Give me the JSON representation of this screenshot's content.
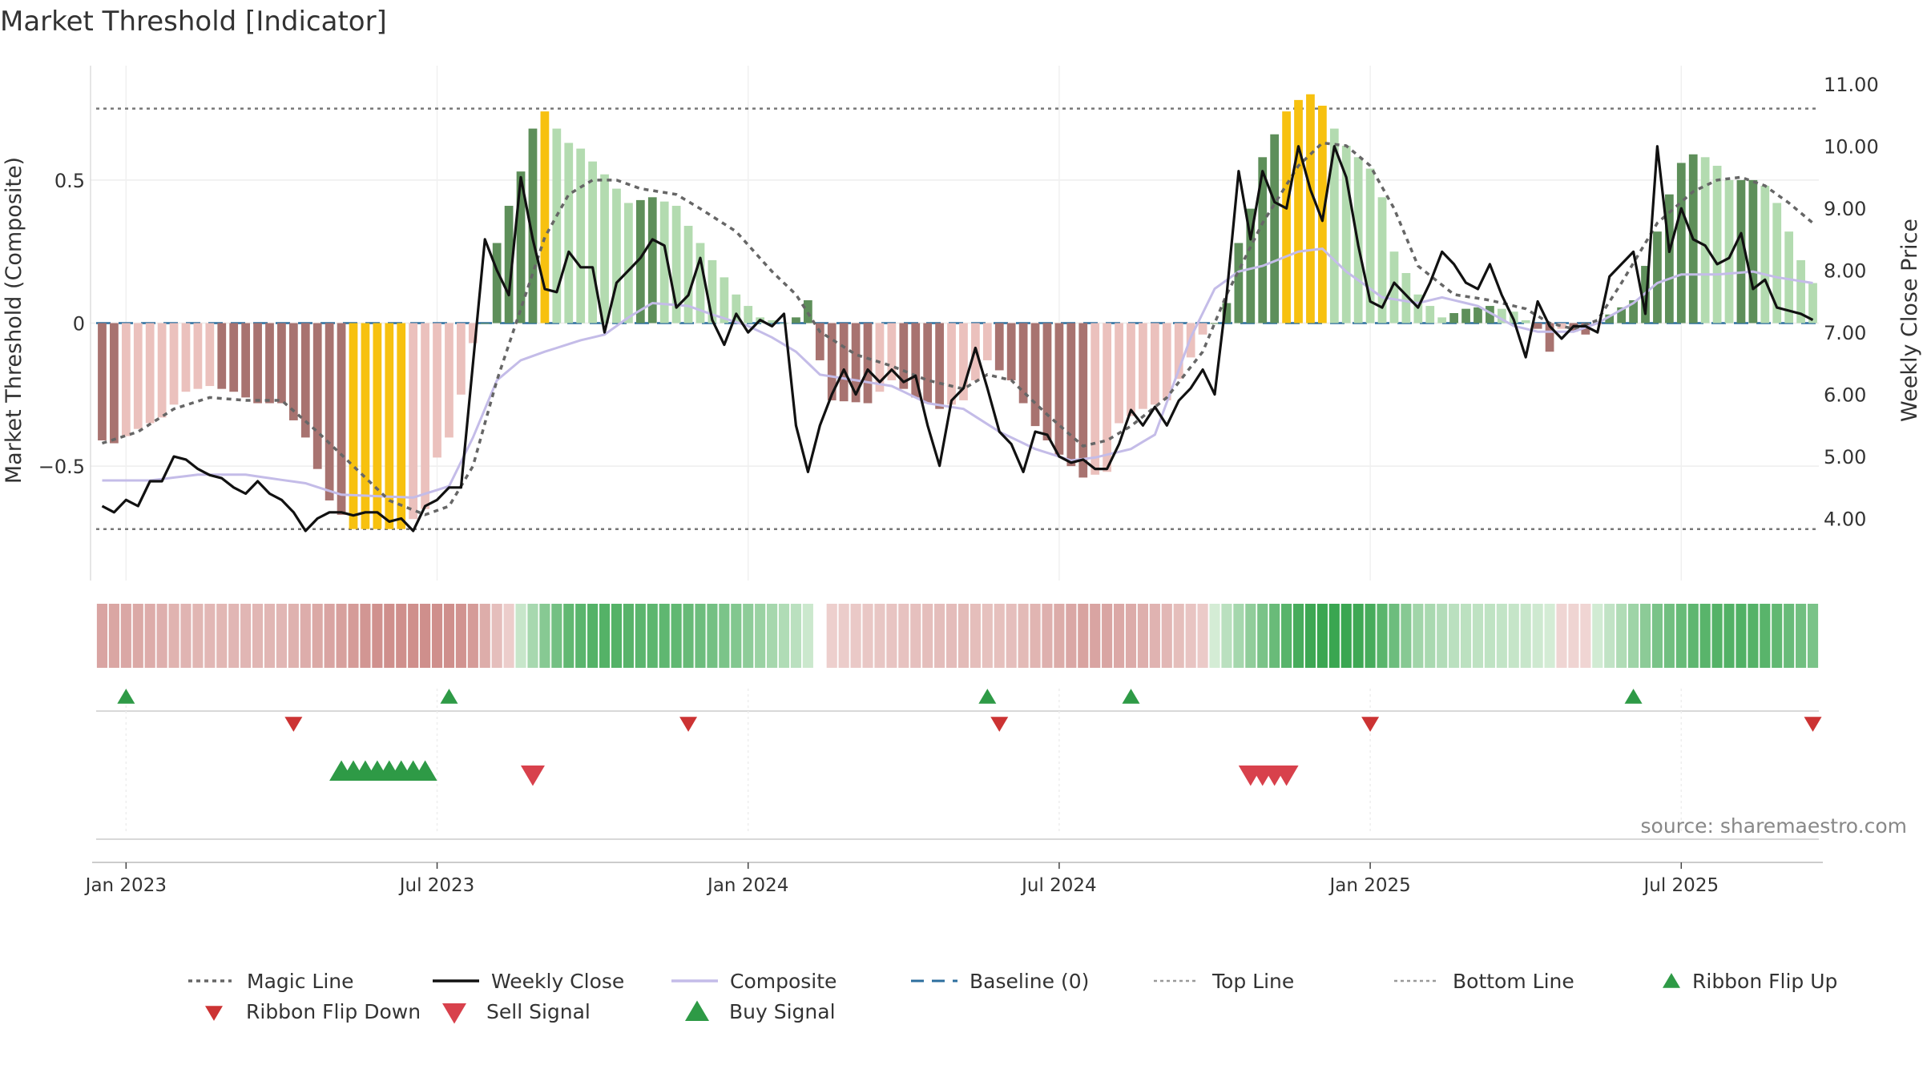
{
  "title": "Market Threshold [Indicator]",
  "source_note": "source: sharemaestro.com",
  "colors": {
    "strong_pos": "#5e8f5a",
    "weak_pos": "#b3dbb0",
    "strong_neg": "#a87370",
    "weak_neg": "#ebc1bd",
    "peak": "#f7c10f",
    "magic": "#666666",
    "close": "#111111",
    "composite": "#c4bce8",
    "baseline": "#2c6e9e",
    "ref": "#777777",
    "buy": "#2e9a46",
    "sell": "#d8414c",
    "flip_up": "#2e9a46",
    "flip_down": "#cc3333"
  },
  "chart_data": {
    "type": "bar+line",
    "title": "Market Threshold [Indicator]",
    "ylabel_left": "Market Threshold (Composite)",
    "ylabel_right": "Weekly Close Price",
    "ylim_left": [
      -0.9,
      0.9
    ],
    "ylim_right": [
      3.0,
      11.3
    ],
    "yticks_left": [
      {
        "v": 0.5,
        "label": "0.5"
      },
      {
        "v": 0,
        "label": "0"
      },
      {
        "v": -0.5,
        "label": "−0.5"
      }
    ],
    "yticks_right": [
      {
        "v": 11,
        "label": "11.00"
      },
      {
        "v": 10,
        "label": "10.00"
      },
      {
        "v": 9,
        "label": "9.00"
      },
      {
        "v": 8,
        "label": "8.00"
      },
      {
        "v": 7,
        "label": "7.00"
      },
      {
        "v": 6,
        "label": "6.00"
      },
      {
        "v": 5,
        "label": "5.00"
      },
      {
        "v": 4,
        "label": "4.00"
      }
    ],
    "xticks": [
      {
        "week": 2,
        "label": "Jan 2023"
      },
      {
        "week": 28,
        "label": "Jul 2023"
      },
      {
        "week": 54,
        "label": "Jan 2024"
      },
      {
        "week": 80,
        "label": "Jul 2024"
      },
      {
        "week": 106,
        "label": "Jan 2025"
      },
      {
        "week": 132,
        "label": "Jul 2025"
      }
    ],
    "top_line": 0.75,
    "bottom_line": -0.72,
    "baseline": 0,
    "composite_keys": [
      [
        0,
        -0.55
      ],
      [
        4,
        -0.55
      ],
      [
        8,
        -0.53
      ],
      [
        12,
        -0.53
      ],
      [
        17,
        -0.56
      ],
      [
        20,
        -0.6
      ],
      [
        26,
        -0.61
      ],
      [
        29,
        -0.57
      ],
      [
        31,
        -0.4
      ],
      [
        33,
        -0.2
      ],
      [
        35,
        -0.13
      ],
      [
        37,
        -0.1
      ],
      [
        40,
        -0.06
      ],
      [
        42,
        -0.04
      ],
      [
        44,
        0.02
      ],
      [
        46,
        0.07
      ],
      [
        49,
        0.06
      ],
      [
        51,
        0.03
      ],
      [
        54,
        -0.01
      ],
      [
        56,
        -0.05
      ],
      [
        58,
        -0.1
      ],
      [
        60,
        -0.18
      ],
      [
        63,
        -0.2
      ],
      [
        66,
        -0.22
      ],
      [
        69,
        -0.28
      ],
      [
        72,
        -0.3
      ],
      [
        75,
        -0.38
      ],
      [
        78,
        -0.44
      ],
      [
        81,
        -0.48
      ],
      [
        83,
        -0.47
      ],
      [
        86,
        -0.44
      ],
      [
        88,
        -0.39
      ],
      [
        91,
        -0.05
      ],
      [
        93,
        0.12
      ],
      [
        95,
        0.18
      ],
      [
        97,
        0.2
      ],
      [
        100,
        0.25
      ],
      [
        102,
        0.26
      ],
      [
        104,
        0.18
      ],
      [
        107,
        0.09
      ],
      [
        110,
        0.07
      ],
      [
        112,
        0.09
      ],
      [
        115,
        0.06
      ],
      [
        118,
        -0.01
      ],
      [
        120,
        -0.03
      ],
      [
        123,
        -0.03
      ],
      [
        125,
        0.0
      ],
      [
        128,
        0.07
      ],
      [
        130,
        0.14
      ],
      [
        132,
        0.17
      ],
      [
        135,
        0.17
      ],
      [
        138,
        0.18
      ],
      [
        140,
        0.16
      ],
      [
        143,
        0.14
      ]
    ],
    "magic_keys": [
      [
        0,
        -0.42
      ],
      [
        3,
        -0.38
      ],
      [
        6,
        -0.3
      ],
      [
        9,
        -0.26
      ],
      [
        12,
        -0.27
      ],
      [
        15,
        -0.27
      ],
      [
        18,
        -0.38
      ],
      [
        21,
        -0.5
      ],
      [
        24,
        -0.62
      ],
      [
        27,
        -0.67
      ],
      [
        29,
        -0.64
      ],
      [
        31,
        -0.5
      ],
      [
        33,
        -0.2
      ],
      [
        35,
        0.05
      ],
      [
        37,
        0.3
      ],
      [
        39,
        0.45
      ],
      [
        41,
        0.5
      ],
      [
        43,
        0.5
      ],
      [
        45,
        0.47
      ],
      [
        48,
        0.45
      ],
      [
        50,
        0.4
      ],
      [
        53,
        0.32
      ],
      [
        56,
        0.18
      ],
      [
        58,
        0.1
      ],
      [
        60,
        -0.03
      ],
      [
        63,
        -0.11
      ],
      [
        66,
        -0.15
      ],
      [
        69,
        -0.2
      ],
      [
        72,
        -0.23
      ],
      [
        74,
        -0.18
      ],
      [
        76,
        -0.2
      ],
      [
        79,
        -0.32
      ],
      [
        82,
        -0.43
      ],
      [
        84,
        -0.41
      ],
      [
        86,
        -0.36
      ],
      [
        89,
        -0.26
      ],
      [
        92,
        -0.1
      ],
      [
        94,
        0.1
      ],
      [
        97,
        0.35
      ],
      [
        100,
        0.55
      ],
      [
        102,
        0.63
      ],
      [
        104,
        0.62
      ],
      [
        106,
        0.55
      ],
      [
        108,
        0.4
      ],
      [
        110,
        0.2
      ],
      [
        113,
        0.1
      ],
      [
        116,
        0.08
      ],
      [
        119,
        0.05
      ],
      [
        121,
        0.0
      ],
      [
        123,
        -0.02
      ],
      [
        125,
        0.01
      ],
      [
        127,
        0.14
      ],
      [
        130,
        0.35
      ],
      [
        133,
        0.46
      ],
      [
        135,
        0.5
      ],
      [
        137,
        0.51
      ],
      [
        139,
        0.48
      ],
      [
        141,
        0.42
      ],
      [
        143,
        0.35
      ]
    ],
    "close_keys": [
      [
        0,
        4.2
      ],
      [
        1,
        4.1
      ],
      [
        2,
        4.3
      ],
      [
        3,
        4.2
      ],
      [
        4,
        4.6
      ],
      [
        5,
        4.6
      ],
      [
        6,
        5.0
      ],
      [
        7,
        4.95
      ],
      [
        8,
        4.8
      ],
      [
        9,
        4.7
      ],
      [
        10,
        4.65
      ],
      [
        11,
        4.5
      ],
      [
        12,
        4.4
      ],
      [
        13,
        4.6
      ],
      [
        14,
        4.4
      ],
      [
        15,
        4.3
      ],
      [
        16,
        4.1
      ],
      [
        17,
        3.8
      ],
      [
        18,
        4.0
      ],
      [
        19,
        4.1
      ],
      [
        20,
        4.1
      ],
      [
        21,
        4.05
      ],
      [
        22,
        4.1
      ],
      [
        23,
        4.1
      ],
      [
        24,
        3.95
      ],
      [
        25,
        4.0
      ],
      [
        26,
        3.8
      ],
      [
        27,
        4.2
      ],
      [
        28,
        4.3
      ],
      [
        29,
        4.5
      ],
      [
        30,
        4.5
      ],
      [
        31,
        6.5
      ],
      [
        32,
        8.5
      ],
      [
        33,
        8.0
      ],
      [
        34,
        7.6
      ],
      [
        35,
        9.5
      ],
      [
        36,
        8.5
      ],
      [
        37,
        7.7
      ],
      [
        38,
        7.65
      ],
      [
        39,
        8.3
      ],
      [
        40,
        8.05
      ],
      [
        41,
        8.05
      ],
      [
        42,
        7.0
      ],
      [
        43,
        7.8
      ],
      [
        44,
        8.0
      ],
      [
        45,
        8.2
      ],
      [
        46,
        8.5
      ],
      [
        47,
        8.4
      ],
      [
        48,
        7.4
      ],
      [
        49,
        7.6
      ],
      [
        50,
        8.2
      ],
      [
        51,
        7.2
      ],
      [
        52,
        6.8
      ],
      [
        53,
        7.3
      ],
      [
        54,
        7.0
      ],
      [
        55,
        7.2
      ],
      [
        56,
        7.1
      ],
      [
        57,
        7.3
      ],
      [
        58,
        5.5
      ],
      [
        59,
        4.75
      ],
      [
        60,
        5.5
      ],
      [
        61,
        6.0
      ],
      [
        62,
        6.4
      ],
      [
        63,
        6.0
      ],
      [
        64,
        6.4
      ],
      [
        65,
        6.2
      ],
      [
        66,
        6.4
      ],
      [
        67,
        6.2
      ],
      [
        68,
        6.3
      ],
      [
        69,
        5.5
      ],
      [
        70,
        4.85
      ],
      [
        71,
        5.9
      ],
      [
        72,
        6.1
      ],
      [
        73,
        6.75
      ],
      [
        74,
        6.1
      ],
      [
        75,
        5.4
      ],
      [
        76,
        5.2
      ],
      [
        77,
        4.75
      ],
      [
        78,
        5.4
      ],
      [
        79,
        5.35
      ],
      [
        80,
        5.0
      ],
      [
        81,
        4.9
      ],
      [
        82,
        4.95
      ],
      [
        83,
        4.8
      ],
      [
        84,
        4.8
      ],
      [
        85,
        5.2
      ],
      [
        86,
        5.75
      ],
      [
        87,
        5.5
      ],
      [
        88,
        5.8
      ],
      [
        89,
        5.5
      ],
      [
        90,
        5.9
      ],
      [
        91,
        6.1
      ],
      [
        92,
        6.4
      ],
      [
        93,
        6.0
      ],
      [
        94,
        7.6
      ],
      [
        95,
        9.6
      ],
      [
        96,
        8.5
      ],
      [
        97,
        9.6
      ],
      [
        98,
        9.1
      ],
      [
        99,
        9.0
      ],
      [
        100,
        10.0
      ],
      [
        101,
        9.3
      ],
      [
        102,
        8.8
      ],
      [
        103,
        10.0
      ],
      [
        104,
        9.5
      ],
      [
        105,
        8.4
      ],
      [
        106,
        7.5
      ],
      [
        107,
        7.4
      ],
      [
        108,
        7.8
      ],
      [
        109,
        7.6
      ],
      [
        110,
        7.4
      ],
      [
        111,
        7.8
      ],
      [
        112,
        8.3
      ],
      [
        113,
        8.1
      ],
      [
        114,
        7.8
      ],
      [
        115,
        7.7
      ],
      [
        116,
        8.1
      ],
      [
        117,
        7.6
      ],
      [
        118,
        7.2
      ],
      [
        119,
        6.6
      ],
      [
        120,
        7.5
      ],
      [
        121,
        7.1
      ],
      [
        122,
        6.9
      ],
      [
        123,
        7.1
      ],
      [
        124,
        7.1
      ],
      [
        125,
        7.0
      ],
      [
        126,
        7.9
      ],
      [
        127,
        8.1
      ],
      [
        128,
        8.3
      ],
      [
        129,
        7.3
      ],
      [
        130,
        10.0
      ],
      [
        131,
        8.3
      ],
      [
        132,
        9.0
      ],
      [
        133,
        8.5
      ],
      [
        134,
        8.4
      ],
      [
        135,
        8.1
      ],
      [
        136,
        8.2
      ],
      [
        137,
        8.6
      ],
      [
        138,
        7.7
      ],
      [
        139,
        7.85
      ],
      [
        140,
        7.4
      ],
      [
        141,
        7.35
      ],
      [
        142,
        7.3
      ],
      [
        143,
        7.2
      ]
    ],
    "bar_keys": [
      [
        0,
        -0.41
      ],
      [
        1,
        -0.42
      ],
      [
        3,
        -0.37
      ],
      [
        5,
        -0.33
      ],
      [
        7,
        -0.24
      ],
      [
        9,
        -0.22
      ],
      [
        11,
        -0.24
      ],
      [
        13,
        -0.28
      ],
      [
        15,
        -0.28
      ],
      [
        17,
        -0.4
      ],
      [
        19,
        -0.62
      ],
      [
        20,
        -0.67
      ],
      [
        21,
        -0.72
      ],
      [
        25,
        -0.72
      ],
      [
        27,
        -0.65
      ],
      [
        28,
        -0.47
      ],
      [
        29,
        -0.4
      ],
      [
        30,
        -0.25
      ],
      [
        31,
        -0.07
      ],
      [
        32,
        0.0
      ],
      [
        33,
        0.28
      ],
      [
        34,
        0.41
      ],
      [
        35,
        0.53
      ],
      [
        36,
        0.68
      ],
      [
        37,
        0.74
      ],
      [
        38,
        0.68
      ],
      [
        39,
        0.63
      ],
      [
        40,
        0.61
      ],
      [
        42,
        0.52
      ],
      [
        44,
        0.42
      ],
      [
        46,
        0.44
      ],
      [
        48,
        0.41
      ],
      [
        49,
        0.34
      ],
      [
        51,
        0.22
      ],
      [
        53,
        0.1
      ],
      [
        55,
        0.02
      ],
      [
        57,
        0.0
      ],
      [
        58,
        0.02
      ],
      [
        59,
        0.08
      ],
      [
        60,
        -0.13
      ],
      [
        61,
        -0.27
      ],
      [
        64,
        -0.28
      ],
      [
        66,
        -0.2
      ],
      [
        68,
        -0.26
      ],
      [
        70,
        -0.3
      ],
      [
        72,
        -0.27
      ],
      [
        74,
        -0.13
      ],
      [
        76,
        -0.2
      ],
      [
        78,
        -0.36
      ],
      [
        80,
        -0.46
      ],
      [
        82,
        -0.54
      ],
      [
        84,
        -0.52
      ],
      [
        85,
        -0.35
      ],
      [
        87,
        -0.3
      ],
      [
        89,
        -0.27
      ],
      [
        91,
        -0.12
      ],
      [
        92,
        -0.04
      ],
      [
        93,
        0.0
      ],
      [
        94,
        0.07
      ],
      [
        95,
        0.28
      ],
      [
        96,
        0.4
      ],
      [
        97,
        0.58
      ],
      [
        98,
        0.66
      ],
      [
        99,
        0.74
      ],
      [
        100,
        0.78
      ],
      [
        101,
        0.8
      ],
      [
        102,
        0.76
      ],
      [
        103,
        0.68
      ],
      [
        104,
        0.62
      ],
      [
        106,
        0.54
      ],
      [
        107,
        0.44
      ],
      [
        108,
        0.25
      ],
      [
        110,
        0.1
      ],
      [
        112,
        0.02
      ],
      [
        114,
        0.05
      ],
      [
        116,
        0.06
      ],
      [
        118,
        0.04
      ],
      [
        120,
        -0.02
      ],
      [
        121,
        -0.1
      ],
      [
        122,
        -0.02
      ],
      [
        124,
        -0.04
      ],
      [
        126,
        0.03
      ],
      [
        128,
        0.08
      ],
      [
        129,
        0.2
      ],
      [
        130,
        0.32
      ],
      [
        131,
        0.45
      ],
      [
        132,
        0.56
      ],
      [
        133,
        0.59
      ],
      [
        134,
        0.58
      ],
      [
        135,
        0.55
      ],
      [
        136,
        0.5
      ],
      [
        138,
        0.5
      ],
      [
        139,
        0.48
      ],
      [
        140,
        0.42
      ],
      [
        141,
        0.32
      ],
      [
        142,
        0.22
      ],
      [
        143,
        0.14
      ]
    ],
    "weeks": 144,
    "markers": {
      "flip_up": [
        2,
        29,
        74,
        86,
        128
      ],
      "flip_down": [
        16,
        49,
        75,
        106,
        143
      ],
      "sell": [
        36,
        96,
        97,
        98,
        99
      ],
      "buy": [
        20,
        21,
        22,
        23,
        24,
        25,
        26,
        27
      ]
    }
  },
  "legend": [
    {
      "key": "magic",
      "label": "Magic Line",
      "style": "dotted"
    },
    {
      "key": "close",
      "label": "Weekly Close",
      "style": "solid"
    },
    {
      "key": "composite",
      "label": "Composite",
      "style": "solid"
    },
    {
      "key": "baseline",
      "label": "Baseline (0)",
      "style": "dashed"
    },
    {
      "key": "top",
      "label": "Top Line",
      "style": "fine-dotted"
    },
    {
      "key": "bottom",
      "label": "Bottom Line",
      "style": "fine-dotted"
    },
    {
      "key": "flip_up",
      "label": "Ribbon Flip Up",
      "style": "tri-up"
    },
    {
      "key": "flip_down",
      "label": "Ribbon Flip Down",
      "style": "tri-down-small"
    },
    {
      "key": "sell",
      "label": "Sell Signal",
      "style": "tri-down"
    },
    {
      "key": "buy",
      "label": "Buy Signal",
      "style": "tri-up-large"
    }
  ]
}
